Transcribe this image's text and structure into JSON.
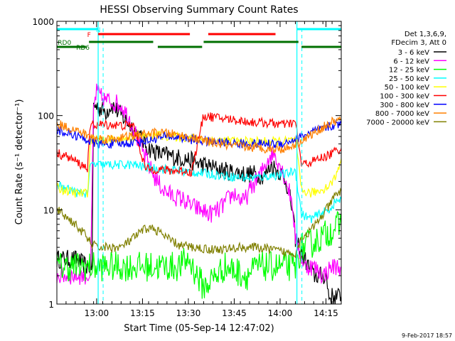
{
  "chart_data": {
    "type": "line",
    "title": "HESSI Observing Summary Count Rates",
    "xlabel": "Start Time (05-Sep-14 12:47:02)",
    "ylabel": "Count Rate (s⁻¹ detector⁻¹)",
    "x_range_minutes": [
      0,
      93
    ],
    "ylim": [
      1,
      1000
    ],
    "yscale": "log",
    "grid": false,
    "legend_position": "right",
    "x_ticks": [
      {
        "minute": 13,
        "label": "13:00"
      },
      {
        "minute": 28,
        "label": "13:15"
      },
      {
        "minute": 43,
        "label": "13:30"
      },
      {
        "minute": 58,
        "label": "13:45"
      },
      {
        "minute": 73,
        "label": "14:00"
      },
      {
        "minute": 88,
        "label": "14:15"
      }
    ],
    "y_ticks": [
      {
        "value": 1,
        "label": "1"
      },
      {
        "value": 10,
        "label": "10"
      },
      {
        "value": 100,
        "label": "100"
      },
      {
        "value": 1000,
        "label": "1000"
      }
    ],
    "legend_header": [
      "Det 1,3,6,9,",
      "FDecim 3, Att 0"
    ],
    "series": [
      {
        "name": "3 - 6 keV",
        "color": "#000000",
        "points": [
          [
            0,
            3
          ],
          [
            6,
            3
          ],
          [
            10,
            2.5
          ],
          [
            11.5,
            2.5
          ],
          [
            12,
            130
          ],
          [
            14,
            120
          ],
          [
            16,
            110
          ],
          [
            18,
            130
          ],
          [
            21,
            100
          ],
          [
            24,
            80
          ],
          [
            27,
            60
          ],
          [
            30,
            45
          ],
          [
            33,
            40
          ],
          [
            36,
            38
          ],
          [
            39,
            36
          ],
          [
            42,
            35
          ],
          [
            45,
            32
          ],
          [
            48,
            30
          ],
          [
            51,
            28
          ],
          [
            55,
            26
          ],
          [
            58,
            25
          ],
          [
            62,
            24
          ],
          [
            65,
            24
          ],
          [
            68,
            23
          ],
          [
            70,
            30
          ],
          [
            73,
            25
          ],
          [
            75,
            20
          ],
          [
            77,
            10
          ],
          [
            78,
            5
          ],
          [
            81,
            3
          ],
          [
            84,
            2
          ],
          [
            88,
            2
          ],
          [
            89,
            1.2
          ],
          [
            93,
            1.2
          ]
        ]
      },
      {
        "name": "6 - 12 keV",
        "color": "#ff00ff",
        "points": [
          [
            0,
            2
          ],
          [
            6,
            2
          ],
          [
            11,
            2
          ],
          [
            12,
            120
          ],
          [
            13,
            180
          ],
          [
            15,
            150
          ],
          [
            18,
            140
          ],
          [
            21,
            130
          ],
          [
            24,
            90
          ],
          [
            27,
            50
          ],
          [
            30,
            30
          ],
          [
            32,
            22
          ],
          [
            35,
            16
          ],
          [
            38,
            14
          ],
          [
            41,
            13
          ],
          [
            44,
            11
          ],
          [
            47,
            10
          ],
          [
            50,
            9
          ],
          [
            53,
            10
          ],
          [
            56,
            13
          ],
          [
            58,
            15
          ],
          [
            61,
            12
          ],
          [
            64,
            18
          ],
          [
            67,
            25
          ],
          [
            69,
            35
          ],
          [
            71,
            40
          ],
          [
            73,
            30
          ],
          [
            75,
            20
          ],
          [
            77,
            12
          ],
          [
            78,
            5
          ],
          [
            81,
            2.5
          ],
          [
            84,
            2.5
          ],
          [
            87,
            2
          ],
          [
            90,
            2.5
          ],
          [
            93,
            2.5
          ]
        ]
      },
      {
        "name": "12 - 25 keV",
        "color": "#00ff00",
        "points": [
          [
            0,
            2.5
          ],
          [
            8,
            2.5
          ],
          [
            11,
            2.5
          ],
          [
            12,
            2.5
          ],
          [
            25,
            2.5
          ],
          [
            30,
            2.5
          ],
          [
            38,
            2.5
          ],
          [
            40,
            2.5
          ],
          [
            43,
            3
          ],
          [
            48,
            1.5
          ],
          [
            55,
            2.5
          ],
          [
            62,
            2
          ],
          [
            66,
            2.5
          ],
          [
            72,
            2.5
          ],
          [
            78,
            2.5
          ],
          [
            80,
            4
          ],
          [
            84,
            4.5
          ],
          [
            88,
            5.5
          ],
          [
            91,
            6.5
          ],
          [
            93,
            7
          ]
        ]
      },
      {
        "name": "25 - 50 keV",
        "color": "#00ffff",
        "points": [
          [
            0,
            19
          ],
          [
            2,
            17
          ],
          [
            5,
            16
          ],
          [
            7,
            15
          ],
          [
            9,
            15
          ],
          [
            10,
            15
          ],
          [
            11,
            30
          ],
          [
            15,
            30
          ],
          [
            20,
            30
          ],
          [
            25,
            30
          ],
          [
            30,
            28
          ],
          [
            35,
            27
          ],
          [
            40,
            26
          ],
          [
            45,
            25
          ],
          [
            50,
            24
          ],
          [
            55,
            23
          ],
          [
            60,
            22
          ],
          [
            65,
            22
          ],
          [
            70,
            23
          ],
          [
            75,
            24
          ],
          [
            78,
            26
          ],
          [
            80,
            9
          ],
          [
            83,
            8
          ],
          [
            86,
            9
          ],
          [
            89,
            10
          ],
          [
            91,
            12
          ],
          [
            93,
            13
          ]
        ]
      },
      {
        "name": "50 - 100 keV",
        "color": "#ffff00",
        "points": [
          [
            0,
            17
          ],
          [
            3,
            16
          ],
          [
            6,
            15
          ],
          [
            8,
            15
          ],
          [
            10,
            15
          ],
          [
            11,
            55
          ],
          [
            14,
            55
          ],
          [
            17,
            55
          ],
          [
            21,
            55
          ],
          [
            26,
            60
          ],
          [
            32,
            62
          ],
          [
            38,
            60
          ],
          [
            44,
            58
          ],
          [
            50,
            55
          ],
          [
            56,
            54
          ],
          [
            62,
            53
          ],
          [
            68,
            53
          ],
          [
            74,
            53
          ],
          [
            78,
            55
          ],
          [
            80,
            16
          ],
          [
            83,
            15
          ],
          [
            86,
            16
          ],
          [
            89,
            18
          ],
          [
            91,
            22
          ],
          [
            93,
            35
          ]
        ]
      },
      {
        "name": "100 - 300 keV",
        "color": "#ff0000",
        "points": [
          [
            0,
            40
          ],
          [
            3,
            37
          ],
          [
            6,
            33
          ],
          [
            8,
            30
          ],
          [
            10,
            28
          ],
          [
            11,
            80
          ],
          [
            14,
            80
          ],
          [
            18,
            80
          ],
          [
            22,
            78
          ],
          [
            25,
            80
          ],
          [
            29,
            27
          ],
          [
            33,
            27
          ],
          [
            37,
            26
          ],
          [
            41,
            26
          ],
          [
            44,
            25
          ],
          [
            48,
            100
          ],
          [
            52,
            95
          ],
          [
            56,
            92
          ],
          [
            60,
            88
          ],
          [
            64,
            85
          ],
          [
            68,
            84
          ],
          [
            72,
            82
          ],
          [
            75,
            80
          ],
          [
            78,
            85
          ],
          [
            80,
            30
          ],
          [
            83,
            32
          ],
          [
            86,
            35
          ],
          [
            89,
            38
          ],
          [
            91,
            42
          ],
          [
            93,
            45
          ]
        ]
      },
      {
        "name": "300 - 800 keV",
        "color": "#0000ff",
        "points": [
          [
            0,
            70
          ],
          [
            3,
            66
          ],
          [
            6,
            62
          ],
          [
            8,
            58
          ],
          [
            10,
            55
          ],
          [
            13,
            50
          ],
          [
            17,
            50
          ],
          [
            21,
            50
          ],
          [
            25,
            52
          ],
          [
            29,
            54
          ],
          [
            33,
            58
          ],
          [
            37,
            60
          ],
          [
            41,
            58
          ],
          [
            45,
            55
          ],
          [
            49,
            53
          ],
          [
            53,
            52
          ],
          [
            57,
            51
          ],
          [
            61,
            50
          ],
          [
            65,
            50
          ],
          [
            69,
            50
          ],
          [
            72,
            50
          ],
          [
            75,
            52
          ],
          [
            78,
            56
          ],
          [
            81,
            62
          ],
          [
            84,
            68
          ],
          [
            87,
            72
          ],
          [
            90,
            78
          ],
          [
            93,
            82
          ]
        ]
      },
      {
        "name": "800 - 7000 keV",
        "color": "#ff8000",
        "points": [
          [
            0,
            82
          ],
          [
            3,
            76
          ],
          [
            6,
            70
          ],
          [
            9,
            64
          ],
          [
            12,
            58
          ],
          [
            16,
            56
          ],
          [
            20,
            58
          ],
          [
            24,
            60
          ],
          [
            28,
            63
          ],
          [
            32,
            65
          ],
          [
            36,
            65
          ],
          [
            40,
            62
          ],
          [
            44,
            58
          ],
          [
            48,
            54
          ],
          [
            52,
            51
          ],
          [
            56,
            48
          ],
          [
            60,
            47
          ],
          [
            64,
            46
          ],
          [
            68,
            45
          ],
          [
            72,
            44
          ],
          [
            75,
            45
          ],
          [
            78,
            50
          ],
          [
            81,
            56
          ],
          [
            84,
            65
          ],
          [
            87,
            75
          ],
          [
            90,
            85
          ],
          [
            93,
            90
          ]
        ]
      },
      {
        "name": "7000 - 20000 keV",
        "color": "#808000",
        "points": [
          [
            0,
            10
          ],
          [
            3,
            8.5
          ],
          [
            6,
            7
          ],
          [
            9,
            5.5
          ],
          [
            11,
            4.5
          ],
          [
            13,
            4
          ],
          [
            17,
            4
          ],
          [
            21,
            4
          ],
          [
            25,
            5
          ],
          [
            28,
            6
          ],
          [
            30,
            6.5
          ],
          [
            33,
            6
          ],
          [
            36,
            5
          ],
          [
            40,
            4.2
          ],
          [
            45,
            4
          ],
          [
            50,
            3.8
          ],
          [
            55,
            3.8
          ],
          [
            60,
            4
          ],
          [
            65,
            4
          ],
          [
            70,
            3.8
          ],
          [
            75,
            3.5
          ],
          [
            78,
            3.5
          ],
          [
            80,
            5
          ],
          [
            83,
            6
          ],
          [
            86,
            8
          ],
          [
            89,
            11
          ],
          [
            91,
            14
          ],
          [
            93,
            16
          ]
        ]
      }
    ],
    "state_flags": [
      {
        "name": "N",
        "color": "#00ffff",
        "row": 1,
        "label_minute": 13.5,
        "segments": [
          [
            0,
            13.5
          ],
          [
            78.5,
            93
          ]
        ],
        "boundaries": [
          13.5,
          78.5
        ]
      },
      {
        "name": "F",
        "color": "#ff0000",
        "row": 2,
        "label_minute": 10.5,
        "segments": [
          [
            13.5,
            43.5
          ],
          [
            49.5,
            71.5
          ]
        ]
      },
      {
        "name": "RD0",
        "color": "#007000",
        "row": 3,
        "label_minute": 2.5,
        "segments": [
          [
            10.5,
            31.5
          ],
          [
            48,
            79
          ]
        ]
      },
      {
        "name": "RD6",
        "color": "#007000",
        "row": 4,
        "label_minute": 8.5,
        "segments": [
          [
            0,
            9.5
          ],
          [
            33,
            47.5
          ],
          [
            80,
            93
          ]
        ]
      }
    ]
  },
  "footer_date": "9-Feb-2017 18:57"
}
